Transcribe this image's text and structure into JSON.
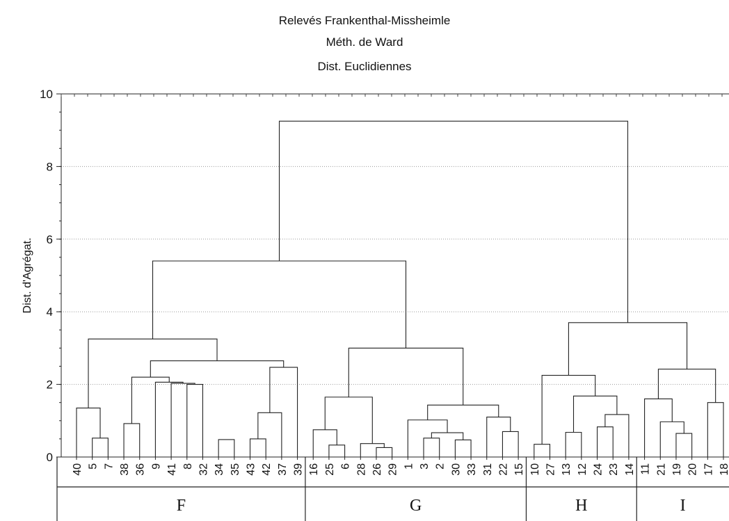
{
  "chart_data": {
    "type": "dendrogram",
    "title_lines": [
      "Relevés Frankenthal-Missheimle",
      "Méth. de Ward",
      "Dist. Euclidiennes"
    ],
    "ylabel": "Dist. d'Agrégat.",
    "ylim": [
      0,
      10
    ],
    "yticks": [
      "0",
      "2",
      "4",
      "6",
      "8",
      "10"
    ],
    "grid": "horizontal dotted",
    "leaves": [
      "40",
      "5",
      "7",
      "38",
      "36",
      "9",
      "41",
      "8",
      "32",
      "34",
      "35",
      "43",
      "42",
      "37",
      "39",
      "16",
      "25",
      "6",
      "28",
      "26",
      "29",
      "1",
      "3",
      "2",
      "30",
      "33",
      "31",
      "22",
      "15",
      "10",
      "27",
      "13",
      "12",
      "24",
      "23",
      "14",
      "11",
      "21",
      "19",
      "20",
      "17",
      "18"
    ],
    "merges": [
      {
        "a": "5",
        "b": "7",
        "h": 0.52
      },
      {
        "a": "40",
        "b": "m0",
        "h": 1.35
      },
      {
        "a": "38",
        "b": "36",
        "h": 0.92
      },
      {
        "a": "32",
        "b": "m5",
        "h": 0.8
      },
      {
        "a": "34",
        "b": "35",
        "h": 0.48
      },
      {
        "a": "m4",
        "b": "dummy",
        "h": 0
      },
      {
        "a": "43",
        "b": "42",
        "h": 0.5
      },
      {
        "a": "m6",
        "b": "37",
        "h": 1.22
      },
      {
        "a": "m7",
        "b": "39",
        "h": 2.47
      },
      {
        "a": "8",
        "b": "m3",
        "h": 2.0
      },
      {
        "a": "41",
        "b": "m9",
        "h": 2.03
      },
      {
        "a": "9",
        "b": "m10",
        "h": 2.06
      },
      {
        "a": "m2",
        "b": "m11",
        "h": 2.2
      },
      {
        "a": "m12",
        "b": "m8",
        "h": 2.65
      },
      {
        "a": "m1",
        "b": "m13",
        "h": 3.25
      },
      {
        "a": "25",
        "b": "6",
        "h": 0.33
      },
      {
        "a": "16",
        "b": "m15",
        "h": 0.75
      },
      {
        "a": "26",
        "b": "29",
        "h": 0.26
      },
      {
        "a": "28",
        "b": "m17",
        "h": 0.37
      },
      {
        "a": "m16",
        "b": "m18",
        "h": 1.65
      },
      {
        "a": "3",
        "b": "2",
        "h": 0.52
      },
      {
        "a": "30",
        "b": "33",
        "h": 0.47
      },
      {
        "a": "m20",
        "b": "m21",
        "h": 0.67
      },
      {
        "a": "1",
        "b": "m22",
        "h": 1.02
      },
      {
        "a": "22",
        "b": "15",
        "h": 0.7
      },
      {
        "a": "31",
        "b": "m24",
        "h": 1.1
      },
      {
        "a": "m23",
        "b": "m25",
        "h": 1.43
      },
      {
        "a": "m19",
        "b": "m26",
        "h": 3.0
      },
      {
        "a": "m14",
        "b": "m27",
        "h": 5.4
      },
      {
        "a": "10",
        "b": "27",
        "h": 0.35
      },
      {
        "a": "24",
        "b": "23",
        "h": 0.83
      },
      {
        "a": "m30",
        "b": "14",
        "h": 1.17
      },
      {
        "a": "13",
        "b": "12",
        "h": 0.68
      },
      {
        "a": "m32",
        "b": "m31",
        "h": 1.68
      },
      {
        "a": "m29",
        "b": "m33",
        "h": 2.25
      },
      {
        "a": "19",
        "b": "20",
        "h": 0.65
      },
      {
        "a": "21",
        "b": "m35",
        "h": 0.97
      },
      {
        "a": "11",
        "b": "m36",
        "h": 1.6
      },
      {
        "a": "17",
        "b": "18",
        "h": 1.5
      },
      {
        "a": "m37",
        "b": "m38",
        "h": 2.42
      },
      {
        "a": "m34",
        "b": "m39",
        "h": 3.7
      },
      {
        "a": "m28",
        "b": "m40",
        "h": 9.25
      }
    ],
    "groups": [
      {
        "label": "F",
        "from": "40",
        "to": "39"
      },
      {
        "label": "G",
        "from": "16",
        "to": "15"
      },
      {
        "label": "H",
        "from": "10",
        "to": "14"
      },
      {
        "label": "I",
        "from": "11",
        "to": "18"
      }
    ]
  }
}
